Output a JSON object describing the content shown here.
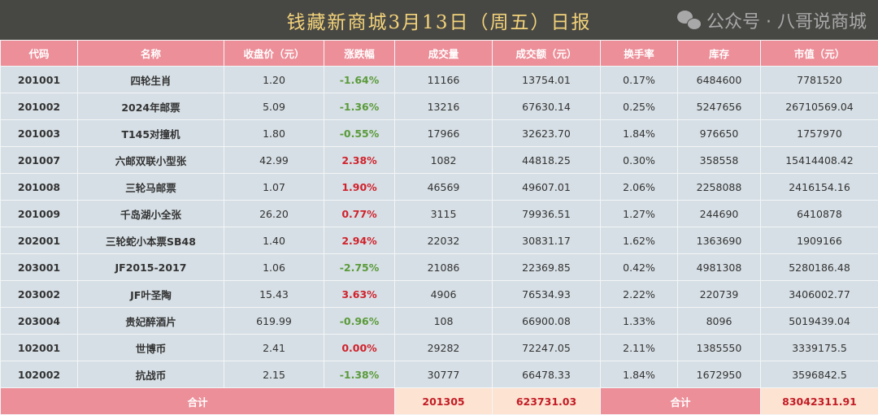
{
  "title": "钱藏新商城3月13日（周五）日报",
  "columns": [
    "代码",
    "名称",
    "收盘价（元）",
    "涨跌幅",
    "成交量",
    "成交额（元）",
    "换手率",
    "库存",
    "市值（元）"
  ],
  "rows": [
    [
      "201001",
      "四轮生肖",
      "1.20",
      "-1.64%",
      "11166",
      "13754.01",
      "0.17%",
      "6484600",
      "7781520"
    ],
    [
      "201002",
      "2024年邮票",
      "5.09",
      "-1.36%",
      "13216",
      "67630.14",
      "0.25%",
      "5247656",
      "26710569.04"
    ],
    [
      "201003",
      "T145对撞机",
      "1.80",
      "-0.55%",
      "17966",
      "32623.70",
      "1.84%",
      "976650",
      "1757970"
    ],
    [
      "201007",
      "六邮双联小型张",
      "42.99",
      "2.38%",
      "1082",
      "44818.25",
      "0.30%",
      "358558",
      "15414408.42"
    ],
    [
      "201008",
      "三轮马邮票",
      "1.07",
      "1.90%",
      "46569",
      "49607.01",
      "2.06%",
      "2258088",
      "2416154.16"
    ],
    [
      "201009",
      "千岛湖小全张",
      "26.20",
      "0.77%",
      "3115",
      "79936.51",
      "1.27%",
      "244690",
      "6410878"
    ],
    [
      "202001",
      "三轮蛇小本票SB48",
      "1.40",
      "2.94%",
      "22032",
      "30831.17",
      "1.62%",
      "1363690",
      "1909166"
    ],
    [
      "203001",
      "JF2015-2017",
      "1.06",
      "-2.75%",
      "21086",
      "22369.85",
      "0.42%",
      "4981308",
      "5280186.48"
    ],
    [
      "203002",
      "JF叶圣陶",
      "15.43",
      "3.63%",
      "4906",
      "76534.93",
      "2.22%",
      "220739",
      "3406002.77"
    ],
    [
      "203004",
      "贵妃醉酒片",
      "619.99",
      "-0.96%",
      "108",
      "66900.08",
      "1.33%",
      "8096",
      "5019439.04"
    ],
    [
      "102001",
      "世博币",
      "2.41",
      "0.00%",
      "29282",
      "72247.05",
      "2.11%",
      "1385550",
      "3339175.5"
    ],
    [
      "102002",
      "抗战币",
      "2.15",
      "-1.38%",
      "30777",
      "66478.33",
      "1.84%",
      "1672950",
      "3596842.5"
    ]
  ],
  "footer": {
    "label1": "合计",
    "volume": "201305",
    "amount": "623731.03",
    "label2": "合计",
    "market_value": "83042311.91"
  },
  "watermark": "公众号 · 八哥说商城",
  "colors": {
    "header": "#ec8f99",
    "title_bg": "#474744",
    "title_text": "#f3d37a",
    "up": "#d0222c",
    "down": "#5a9a3a",
    "row": "#d6dfe5",
    "total": "#fde3d2"
  }
}
